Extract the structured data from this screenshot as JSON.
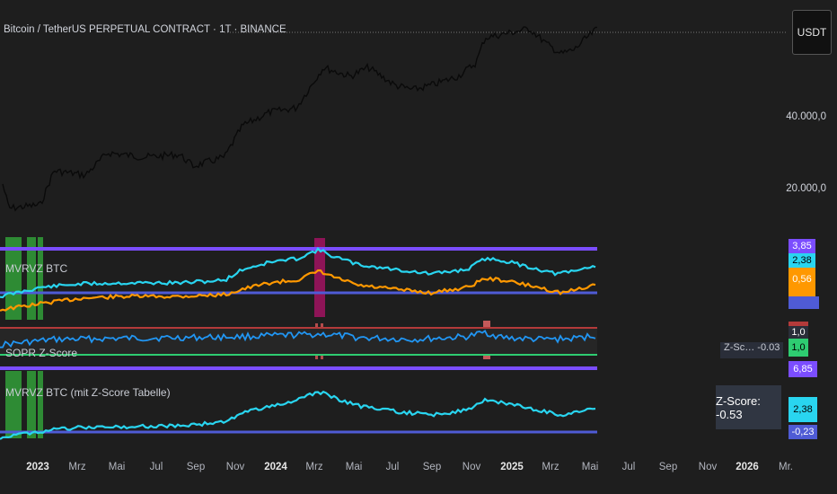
{
  "header": {
    "symbol_title": "Bitcoin / TetherUS PERPETUAL CONTRACT · 1T · BINANCE",
    "currency_button": "USDT"
  },
  "price_axis": {
    "labels": [
      "40.000,0",
      "20.000,0"
    ]
  },
  "panes": {
    "mvrvz": {
      "title": "MVRVZ BTC",
      "tags": [
        "3,85",
        "2,38",
        "0,56"
      ]
    },
    "sopr": {
      "title": "SOPR Z-Score",
      "tags": [
        "1,0",
        "1,0"
      ]
    },
    "mvrvz_table": {
      "title": "MVRVZ BTC (mit Z-Score Tabelle)",
      "tags": [
        "6,85",
        "2,38",
        "-0,23"
      ],
      "zscore_label": "Z-Score: -0.53",
      "zscore_label_partial": "Z-Sc… -0.03"
    }
  },
  "time_axis": {
    "ticks": [
      "2023",
      "Mrz",
      "Mai",
      "Jul",
      "Sep",
      "Nov",
      "2024",
      "Mrz",
      "Mai",
      "Jul",
      "Sep",
      "Nov",
      "2025",
      "Mrz",
      "Mai",
      "Jul",
      "Sep",
      "Nov",
      "2026",
      "Mr."
    ],
    "bold_ticks": [
      "2023",
      "2024",
      "2025",
      "2026"
    ]
  },
  "colors": {
    "background": "#1e1e1e",
    "price_line": "#0a0a0a",
    "cyan_line": "#29d5f0",
    "orange_line": "#ff9800",
    "purple_band": "#7b4dff",
    "blue_band": "#4f5bd5",
    "maroon_band": "#b33a3a",
    "green_band": "#2ecc71",
    "sopr_line": "#2196f3",
    "green_highlight": "#2e8b34",
    "magenta_highlight": "#8e1457"
  }
}
